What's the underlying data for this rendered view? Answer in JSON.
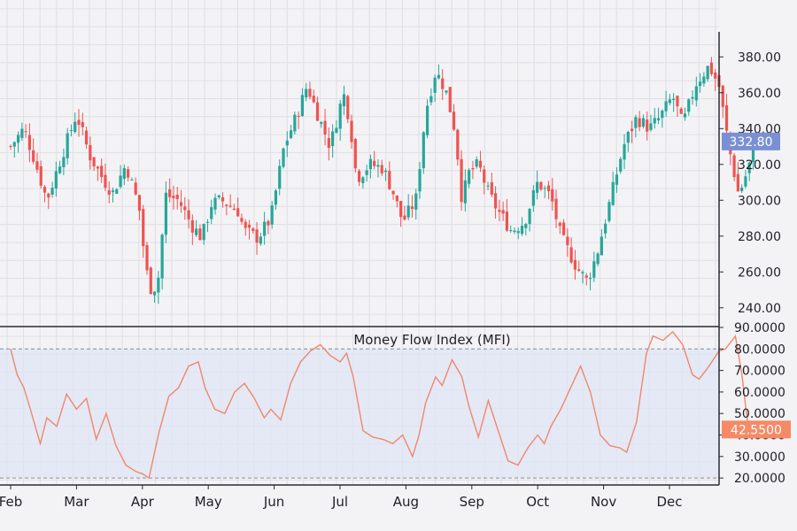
{
  "chart_data": [
    {
      "type": "candlestick",
      "title": "",
      "x_tick_labels": [
        "Feb",
        "Mar",
        "Apr",
        "May",
        "Jun",
        "Jul",
        "Aug",
        "Sep",
        "Oct",
        "Nov",
        "Dec"
      ],
      "y_tick_labels": [
        "240.00",
        "260.00",
        "280.00",
        "300.00",
        "320.00",
        "340.00",
        "360.00",
        "380.00"
      ],
      "ylim": [
        230,
        392
      ],
      "last_price_label": "332.80",
      "last_price": 332.8,
      "colors": {
        "up": "#26a69a",
        "down": "#ef5350",
        "last_price_badge": "#7b8fd4"
      },
      "series": [
        {
          "name": "",
          "close_path": [
            [
              0,
              330
            ],
            [
              0.2,
              340
            ],
            [
              0.35,
              324
            ],
            [
              0.55,
              300
            ],
            [
              0.75,
              322
            ],
            [
              1.0,
              348
            ],
            [
              1.2,
              325
            ],
            [
              1.4,
              312
            ],
            [
              1.55,
              304
            ],
            [
              1.75,
              320
            ],
            [
              1.95,
              296
            ],
            [
              2.05,
              262
            ],
            [
              2.15,
              248
            ],
            [
              2.25,
              258
            ],
            [
              2.35,
              303
            ],
            [
              2.55,
              300
            ],
            [
              2.75,
              286
            ],
            [
              2.9,
              279
            ],
            [
              3.05,
              298
            ],
            [
              3.2,
              300
            ],
            [
              3.45,
              294
            ],
            [
              3.55,
              283
            ],
            [
              3.75,
              279
            ],
            [
              3.95,
              290
            ],
            [
              4.15,
              330
            ],
            [
              4.35,
              348
            ],
            [
              4.5,
              364
            ],
            [
              4.7,
              344
            ],
            [
              4.85,
              330
            ],
            [
              5.05,
              360
            ],
            [
              5.15,
              344
            ],
            [
              5.25,
              312
            ],
            [
              5.45,
              320
            ],
            [
              5.65,
              318
            ],
            [
              5.8,
              305
            ],
            [
              5.95,
              288
            ],
            [
              6.15,
              300
            ],
            [
              6.3,
              350
            ],
            [
              6.45,
              372
            ],
            [
              6.6,
              362
            ],
            [
              6.75,
              338
            ],
            [
              6.85,
              300
            ],
            [
              6.95,
              315
            ],
            [
              7.1,
              320
            ],
            [
              7.25,
              304
            ],
            [
              7.4,
              294
            ],
            [
              7.6,
              283
            ],
            [
              7.8,
              288
            ],
            [
              8.0,
              310
            ],
            [
              8.2,
              302
            ],
            [
              8.35,
              280
            ],
            [
              8.6,
              262
            ],
            [
              8.75,
              255
            ],
            [
              8.9,
              270
            ],
            [
              9.1,
              300
            ],
            [
              9.3,
              330
            ],
            [
              9.5,
              346
            ],
            [
              9.7,
              340
            ],
            [
              9.85,
              346
            ],
            [
              10.05,
              358
            ],
            [
              10.2,
              342
            ],
            [
              10.4,
              365
            ],
            [
              10.6,
              375
            ],
            [
              10.75,
              364
            ],
            [
              10.9,
              330
            ],
            [
              11.05,
              303
            ],
            [
              11.2,
              318
            ],
            [
              11.3,
              332.8
            ]
          ]
        }
      ]
    },
    {
      "type": "line",
      "title": "Money Flow Index (MFI)",
      "y_tick_labels": [
        "20.0000",
        "30.0000",
        "40.0000",
        "50.0000",
        "60.0000",
        "70.0000",
        "80.0000",
        "90.0000"
      ],
      "ylim": [
        18,
        90
      ],
      "band": [
        20,
        80
      ],
      "last_value_label": "42.5500",
      "last_value": 42.55,
      "colors": {
        "line": "#f0876b",
        "band_fill": "#dfe5f4",
        "last_value_badge": "#f58a67"
      },
      "series": [
        {
          "name": "",
          "x": [
            0,
            0.1,
            0.2,
            0.3,
            0.45,
            0.55,
            0.7,
            0.85,
            1.0,
            1.15,
            1.3,
            1.45,
            1.6,
            1.75,
            1.9,
            2.0,
            2.1,
            2.25,
            2.4,
            2.55,
            2.7,
            2.85,
            2.95,
            3.1,
            3.25,
            3.4,
            3.55,
            3.7,
            3.85,
            3.95,
            4.1,
            4.25,
            4.4,
            4.55,
            4.7,
            4.85,
            5.0,
            5.1,
            5.2,
            5.35,
            5.5,
            5.65,
            5.8,
            5.95,
            6.1,
            6.2,
            6.3,
            6.45,
            6.55,
            6.7,
            6.85,
            6.95,
            7.1,
            7.25,
            7.4,
            7.55,
            7.7,
            7.85,
            8.0,
            8.1,
            8.2,
            8.35,
            8.5,
            8.65,
            8.8,
            8.95,
            9.1,
            9.25,
            9.35,
            9.5,
            9.65,
            9.75,
            9.9,
            10.05,
            10.2,
            10.35,
            10.45,
            10.6,
            10.75,
            10.85,
            11.0,
            11.1,
            11.2,
            11.3
          ],
          "y": [
            80,
            68,
            62,
            52,
            36,
            48,
            44,
            59,
            52,
            57,
            38,
            50,
            35,
            26,
            23,
            22,
            20,
            41,
            58,
            62,
            72,
            74,
            62,
            52,
            50,
            60,
            64,
            57,
            48,
            52,
            47,
            64,
            74,
            79,
            82,
            77,
            74,
            78,
            67,
            42,
            39,
            38,
            36,
            40,
            30,
            40,
            55,
            67,
            63,
            75,
            67,
            54,
            39,
            56,
            42,
            28,
            26,
            34,
            40,
            36,
            44,
            52,
            62,
            72,
            60,
            40,
            35,
            34,
            32,
            46,
            78,
            86,
            84,
            88,
            82,
            68,
            66,
            72,
            79,
            80,
            86,
            68,
            42,
            43
          ]
        }
      ]
    }
  ]
}
